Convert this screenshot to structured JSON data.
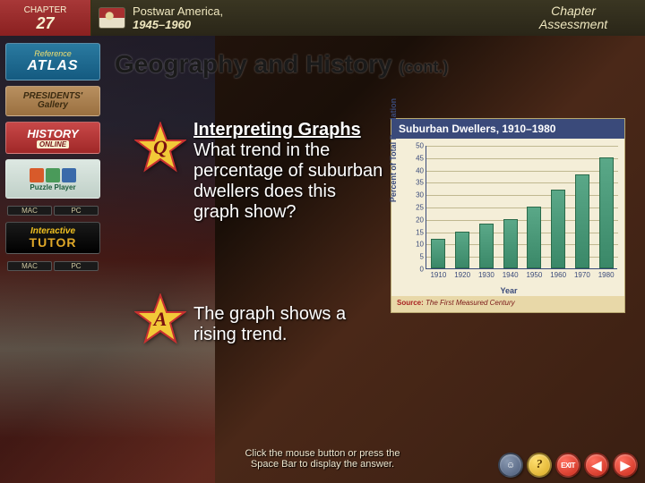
{
  "chapter": {
    "label": "CHAPTER",
    "number": "27"
  },
  "title": {
    "main": "Postwar America,",
    "years": "1945–1960"
  },
  "assessment": {
    "line1": "Chapter",
    "line2": "Assessment"
  },
  "sidebar": {
    "atlas": {
      "ref": "Reference",
      "main": "ATLAS"
    },
    "presidents": {
      "line1": "PRESIDENTS'",
      "line2": "Gallery"
    },
    "history": {
      "main": "HISTORY",
      "sub": "ONLINE"
    },
    "puzzle": {
      "label": "Puzzle Player",
      "colors": [
        "#d85a2a",
        "#4a9a5a",
        "#3a6aaa"
      ]
    },
    "macpc": {
      "mac": "MAC",
      "pc": "PC"
    },
    "tutor": {
      "line1": "Interactive",
      "line2": "TUTOR"
    }
  },
  "heading": {
    "main": "Geography and History",
    "cont": "(cont.)"
  },
  "stars": {
    "q": "Q",
    "a": "A",
    "fill": "#f2c938",
    "stroke": "#c83030"
  },
  "question": {
    "lead": "Interpreting Graphs",
    "body": "  What trend in the percentage of suburban dwellers does this graph show?"
  },
  "answer": "The graph shows a rising trend.",
  "chart": {
    "title": "Suburban Dwellers, 1910–1980",
    "ylabel": "Percent of Total Population",
    "xlabel": "Year",
    "ylim": [
      0,
      50
    ],
    "ytick_step": 5,
    "categories": [
      "1910",
      "1920",
      "1930",
      "1940",
      "1950",
      "1960",
      "1970",
      "1980"
    ],
    "values": [
      12,
      15,
      18,
      20,
      25,
      32,
      38,
      45
    ],
    "bar_color_top": "#5aa888",
    "bar_color_bottom": "#3a8868",
    "bg": "#f4eed8",
    "header_bg": "#3a4a7a",
    "grid_color": "#c0b890",
    "source_label": "Source:",
    "source_text": "The First Measured Century"
  },
  "footer": {
    "line1": "Click the mouse button or press the",
    "line2": "Space Bar to display the answer."
  },
  "nav": {
    "help": "?",
    "exit": "EXIT",
    "prev": "◀",
    "next": "▶"
  }
}
